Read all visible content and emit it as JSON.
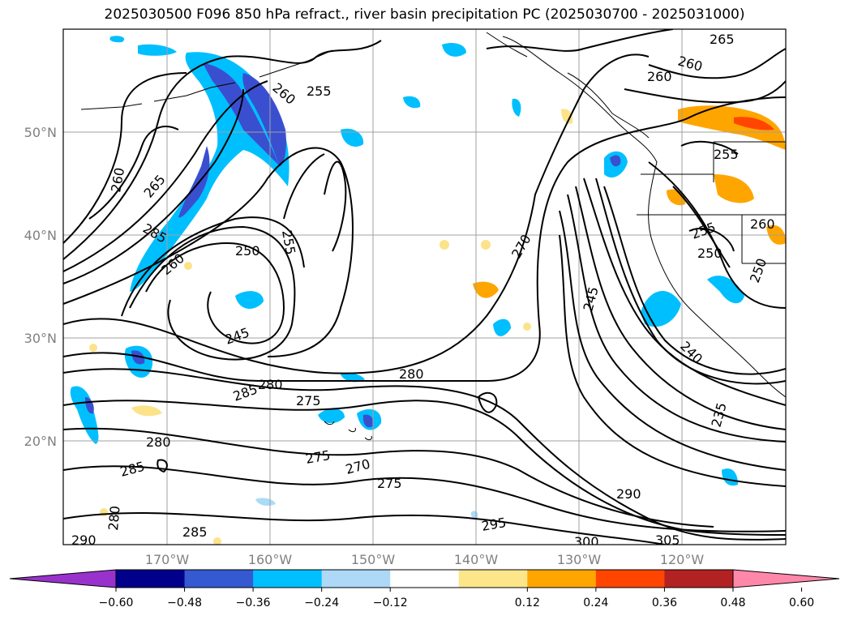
{
  "title": "2025030500 F096 850 hPa refract., river basin precipitation PC (2025030700 - 2025031000)",
  "map": {
    "lat_labels": [
      "50°N",
      "40°N",
      "30°N",
      "20°N"
    ],
    "lon_labels": [
      "170°W",
      "160°W",
      "150°W",
      "140°W",
      "130°W",
      "120°W"
    ],
    "contour_labels": [
      "265",
      "260",
      "260",
      "260",
      "255",
      "255",
      "260",
      "265",
      "285",
      "250",
      "255",
      "270",
      "260",
      "260",
      "250",
      "255",
      "250",
      "245",
      "245",
      "240",
      "280",
      "280",
      "285",
      "275",
      "280",
      "275",
      "270",
      "285",
      "275",
      "290",
      "285",
      "235",
      "295",
      "300",
      "305",
      "280",
      "290"
    ],
    "shading_colors": {
      "neg_strong": "#3a4fd0",
      "neg_mid": "#00bfff",
      "neg_weak": "#aadcf8",
      "pos_weak": "#fce38a",
      "pos_mid": "#ffa500",
      "pos_strong": "#ff4500"
    }
  },
  "colorbar": {
    "ticks": [
      "−0.60",
      "−0.48",
      "−0.36",
      "−0.24",
      "−0.12",
      "0.12",
      "0.24",
      "0.36",
      "0.48",
      "0.60"
    ],
    "colors": [
      "#9932cc",
      "#00008b",
      "#3559d0",
      "#00bfff",
      "#add8f6",
      "#ffffff",
      "#fde68a",
      "#ffa500",
      "#ff4500",
      "#b22222",
      "#ff88aa"
    ]
  }
}
